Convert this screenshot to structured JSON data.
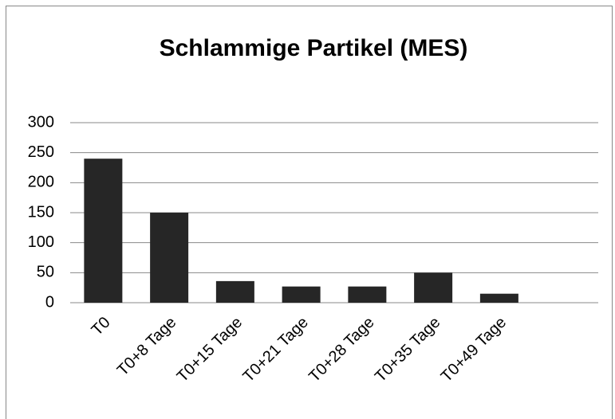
{
  "chart_data": {
    "type": "bar",
    "title": "Schlammige Partikel (MES)",
    "categories": [
      "T0",
      "T0+8 Tage",
      "T0+15 Tage",
      "T0+21 Tage",
      "T0+28 Tage",
      "T0+35 Tage",
      "T0+49 Tage",
      null
    ],
    "values": [
      240,
      150,
      36,
      27,
      27,
      50,
      15,
      null
    ],
    "color": "#262626",
    "ylim": [
      0,
      300
    ],
    "yticks": [
      0,
      50,
      100,
      150,
      200,
      250,
      300
    ],
    "grid": true
  }
}
